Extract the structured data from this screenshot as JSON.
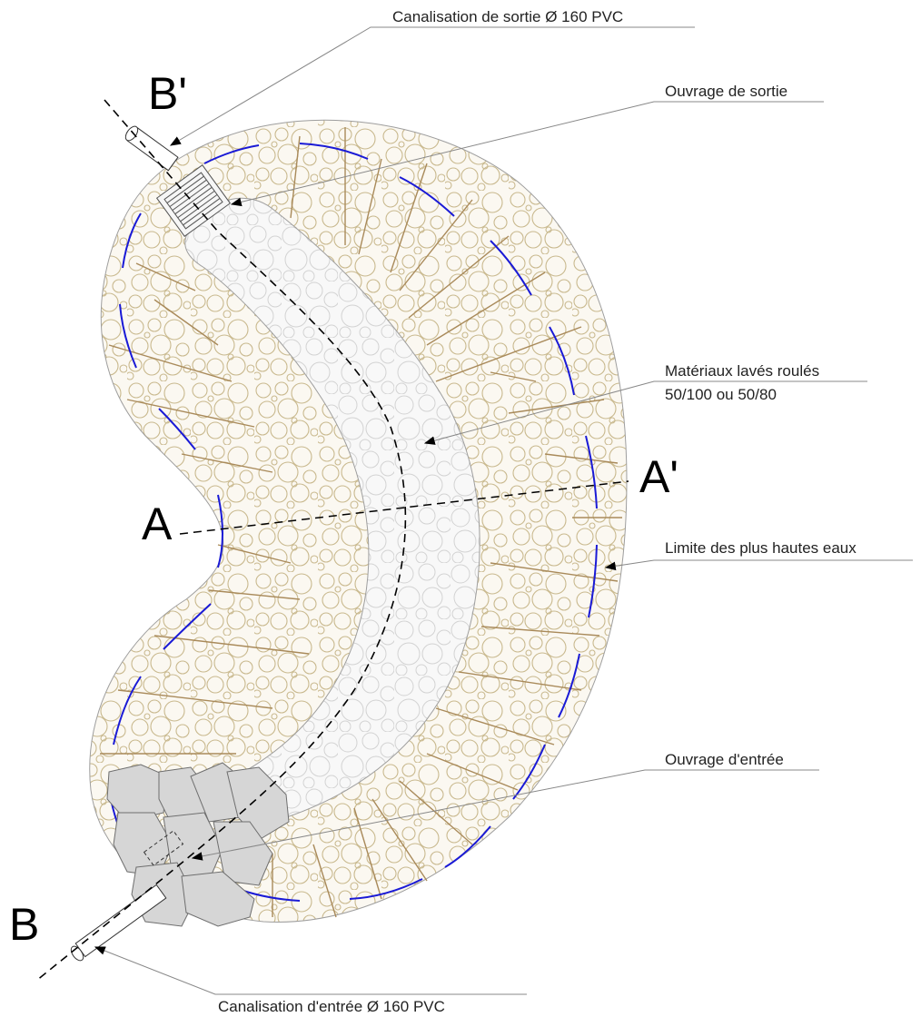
{
  "labels": {
    "outlet_pipe": "Canalisation de sortie Ø 160 PVC",
    "outlet_structure": "Ouvrage de sortie",
    "materials_line1": "Matériaux lavés roulés",
    "materials_line2": "50/100 ou 50/80",
    "high_water": "Limite des plus hautes eaux",
    "inlet_structure": "Ouvrage d'entrée",
    "inlet_pipe": "Canalisation d'entrée Ø 160 PVC"
  },
  "sections": {
    "a": "A",
    "a_prime": "A'",
    "b": "B",
    "b_prime": "B'"
  },
  "colors": {
    "gravel_fill": "#fbf8f1",
    "gravel_stroke": "#c9b98e",
    "inner_fill": "#f8f8f8",
    "inner_stroke": "#cfcfcf",
    "root_lines": "#a98a5a",
    "high_water_line": "#1a1ad6",
    "inlet_stone": "#d6d6d6"
  }
}
